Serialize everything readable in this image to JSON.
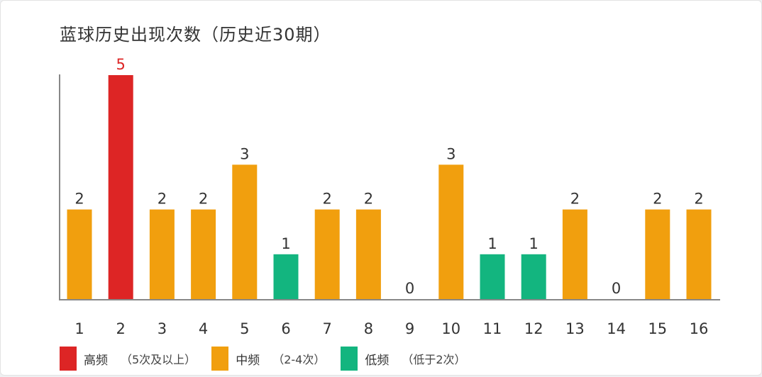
{
  "chart_data": {
    "type": "bar",
    "title": "蓝球历史出现次数（历史近30期）",
    "xlabel": "",
    "ylabel": "",
    "categories": [
      "1",
      "2",
      "3",
      "4",
      "5",
      "6",
      "7",
      "8",
      "9",
      "10",
      "11",
      "12",
      "13",
      "14",
      "15",
      "16"
    ],
    "values": [
      2,
      5,
      2,
      2,
      3,
      1,
      2,
      2,
      0,
      3,
      1,
      1,
      2,
      0,
      2,
      2
    ],
    "ylim": [
      0,
      5
    ],
    "grid": false,
    "legend_placement": "bottom-left",
    "colors": {
      "high": "#dd2525",
      "mid": "#f19f0e",
      "low": "#13b57f",
      "high_label": "#dd2525",
      "label": "#333333",
      "axis": "#888888"
    },
    "legend": [
      {
        "key": "high",
        "name": "高频",
        "range": "（5次及以上）"
      },
      {
        "key": "mid",
        "name": "中频",
        "range": "（2-4次）"
      },
      {
        "key": "low",
        "name": "低频",
        "range": "（低于2次）"
      }
    ]
  }
}
